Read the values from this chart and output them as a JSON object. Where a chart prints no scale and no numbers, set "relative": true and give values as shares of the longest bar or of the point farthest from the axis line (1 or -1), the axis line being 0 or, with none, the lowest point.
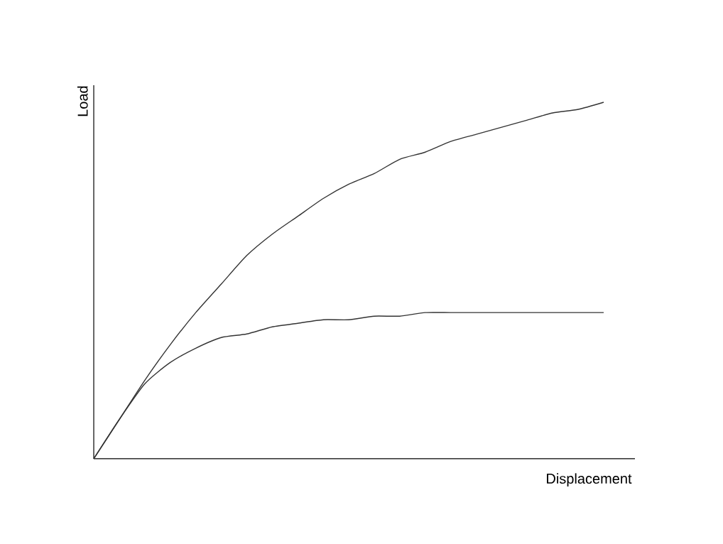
{
  "chart_data": {
    "type": "line",
    "relative": true,
    "xlabel": "Displacement",
    "ylabel": "Load",
    "categories": [
      null,
      null,
      null,
      null,
      null,
      null,
      null,
      null,
      null,
      null,
      null,
      null,
      null,
      null,
      null,
      null,
      null,
      null,
      null,
      null,
      null
    ],
    "series": [
      {
        "color": "#333333",
        "values": [
          0,
          0.11,
          0.22,
          0.32,
          0.41,
          0.49,
          0.57,
          0.63,
          0.68,
          0.73,
          0.77,
          0.8,
          0.84,
          0.86,
          0.89,
          0.91,
          0.93,
          0.95,
          0.97,
          0.98,
          1
        ]
      },
      {
        "color": "#333333",
        "values": [
          0,
          0.11,
          0.21,
          0.27,
          0.31,
          0.34,
          0.35,
          0.37,
          0.38,
          0.39,
          0.39,
          0.4,
          0.4,
          0.41,
          0.41,
          0.41,
          0.41,
          0.41,
          0.41,
          0.41,
          0.41
        ]
      }
    ],
    "marker": "none",
    "line_style": "solid"
  }
}
